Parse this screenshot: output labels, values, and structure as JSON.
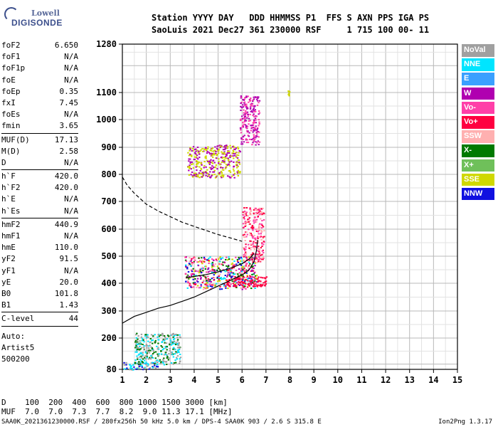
{
  "logo": {
    "line1": "Lowell",
    "line2": "DIGISONDE"
  },
  "header": {
    "line1": "Station YYYY DAY   DDD HHMMSS P1  FFS S AXN PPS IGA PS",
    "line2": "SaoLuis 2021 Dec27 361 230000 RSF     1 715 100 00- 11"
  },
  "params": [
    {
      "key": "foF2",
      "value": "6.650"
    },
    {
      "key": "foF1",
      "value": "N/A"
    },
    {
      "key": "foF1p",
      "value": "N/A"
    },
    {
      "key": "foE",
      "value": "N/A"
    },
    {
      "key": "foEp",
      "value": "0.35"
    },
    {
      "key": "fxI",
      "value": "7.45"
    },
    {
      "key": "foEs",
      "value": "N/A"
    },
    {
      "key": "fmin",
      "value": "3.65"
    },
    {
      "key": "MUF(D)",
      "value": "17.13",
      "sep": true
    },
    {
      "key": "M(D)",
      "value": "2.58"
    },
    {
      "key": "D",
      "value": "N/A"
    },
    {
      "key": "h`F",
      "value": "420.0",
      "sep": true
    },
    {
      "key": "h`F2",
      "value": "420.0"
    },
    {
      "key": "h`E",
      "value": "N/A"
    },
    {
      "key": "h`Es",
      "value": "N/A"
    },
    {
      "key": "hmF2",
      "value": "440.9",
      "sep": true
    },
    {
      "key": "hmF1",
      "value": "N/A"
    },
    {
      "key": "hmE",
      "value": "110.0"
    },
    {
      "key": "yF2",
      "value": "91.5"
    },
    {
      "key": "yF1",
      "value": "N/A"
    },
    {
      "key": "yE",
      "value": "20.0"
    },
    {
      "key": "B0",
      "value": "101.8"
    },
    {
      "key": "B1",
      "value": "1.43"
    },
    {
      "key": "C-level",
      "value": "44",
      "sep": true
    }
  ],
  "auto": {
    "line1": "Auto:",
    "line2": "Artist5",
    "line3": "500200"
  },
  "legend": [
    {
      "label": "NoVal",
      "color": "#a0a0a0"
    },
    {
      "label": "NNE",
      "color": "#00e5ff"
    },
    {
      "label": "E",
      "color": "#3aa0ff"
    },
    {
      "label": "W",
      "color": "#b000b0"
    },
    {
      "label": "Vo-",
      "color": "#ff3fa8"
    },
    {
      "label": "Vo+",
      "color": "#ff0040"
    },
    {
      "label": "SSW",
      "color": "#ffb0b0"
    },
    {
      "label": "X-",
      "color": "#007a00"
    },
    {
      "label": "X+",
      "color": "#6fc05a"
    },
    {
      "label": "SSE",
      "color": "#d0d800"
    },
    {
      "label": "NNW",
      "color": "#1010e0"
    }
  ],
  "chart_data": {
    "type": "scatter",
    "xlim": [
      1,
      15
    ],
    "x_ticks": [
      1,
      2,
      3,
      4,
      5,
      6,
      7,
      8,
      9,
      10,
      11,
      12,
      13,
      14,
      15
    ],
    "ylim": [
      80,
      1280
    ],
    "y_ticks": [
      80,
      200,
      300,
      400,
      500,
      600,
      700,
      800,
      900,
      1000,
      1100,
      1280
    ],
    "grid": true,
    "series": [
      {
        "name": "",
        "style": "dashed",
        "x": [
          1.0,
          1.2,
          1.5,
          2.0,
          2.5,
          3.0,
          3.5,
          4.0,
          4.5,
          5.0,
          5.5,
          6.0
        ],
        "y": [
          790,
          760,
          730,
          690,
          665,
          645,
          625,
          610,
          595,
          580,
          568,
          555
        ]
      },
      {
        "name": "",
        "style": "solid",
        "x": [
          1.0,
          1.5,
          2.0,
          2.5,
          3.0,
          3.5,
          4.0,
          4.5,
          5.0,
          5.5,
          6.0,
          6.3,
          6.5,
          6.6,
          6.65
        ],
        "y": [
          255,
          280,
          295,
          310,
          320,
          335,
          350,
          370,
          390,
          410,
          430,
          450,
          480,
          520,
          560
        ]
      },
      {
        "name": "",
        "style": "solid",
        "x": [
          3.65,
          4.0,
          4.5,
          5.0,
          5.5,
          6.0,
          6.3,
          6.5
        ],
        "y": [
          420,
          425,
          432,
          442,
          455,
          472,
          490,
          510
        ]
      }
    ],
    "echo_clusters": [
      {
        "x": [
          3.6,
          6.6
        ],
        "y": [
          380,
          500
        ],
        "colors": [
          "#ff0040",
          "#ff3fa8",
          "#1010e0",
          "#b000b0",
          "#00e5ff",
          "#d0d800",
          "#ffb0b0",
          "#007a00"
        ]
      },
      {
        "x": [
          6.0,
          6.9
        ],
        "y": [
          480,
          680
        ],
        "colors": [
          "#ff0040",
          "#ff3fa8",
          "#ffb0b0"
        ]
      },
      {
        "x": [
          5.2,
          7.0
        ],
        "y": [
          390,
          430
        ],
        "colors": [
          "#ff0040"
        ]
      },
      {
        "x": [
          3.7,
          5.9
        ],
        "y": [
          790,
          910
        ],
        "colors": [
          "#b000b0",
          "#d0d800"
        ]
      },
      {
        "x": [
          5.9,
          6.7
        ],
        "y": [
          910,
          1090
        ],
        "colors": [
          "#b000b0",
          "#ff3fa8"
        ]
      },
      {
        "x": [
          1.0,
          2.5
        ],
        "y": [
          80,
          110
        ],
        "colors": [
          "#1010e0",
          "#00e5ff",
          "#a0a0a0"
        ]
      },
      {
        "x": [
          1.5,
          3.4
        ],
        "y": [
          100,
          220
        ],
        "colors": [
          "#00e5ff",
          "#007a00",
          "#a0a0a0"
        ]
      },
      {
        "x": [
          7.9,
          8.0
        ],
        "y": [
          1090,
          1110
        ],
        "colors": [
          "#d0d800"
        ]
      }
    ]
  },
  "footer": {
    "row_d": "D    100  200  400  600  800 1000 1500 3000 [km]",
    "row_muf": "MUF  7.0  7.0  7.3  7.7  8.2  9.0 11.3 17.1 [MHz]",
    "file_info": "SAA0K_2021361230000.RSF / 280fx256h 50 kHz 5.0 km / DPS-4 SAA0K 903 / 2.6 S 315.8 E",
    "version": "Ion2Png 1.3.17"
  }
}
